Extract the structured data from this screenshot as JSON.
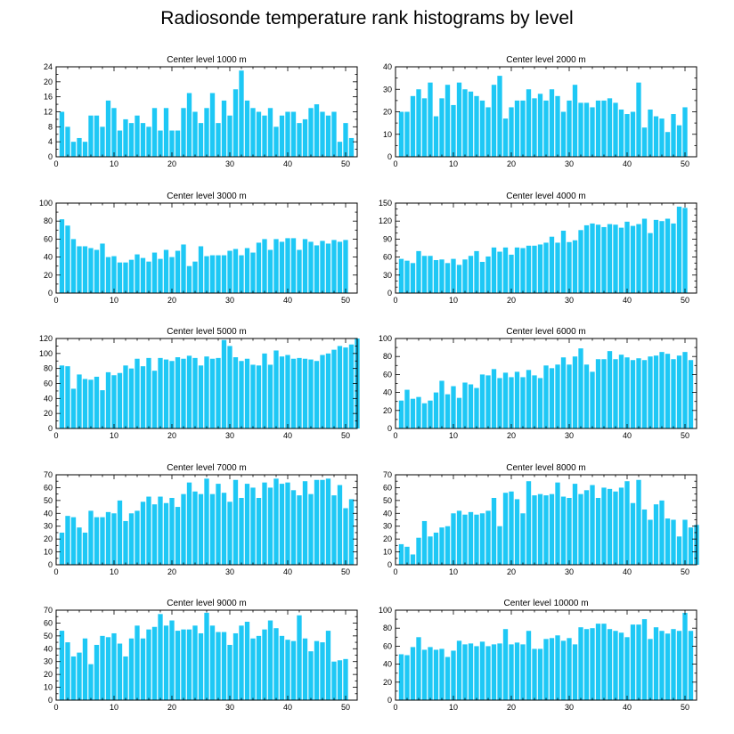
{
  "title": "Radiosonde temperature rank histograms by level",
  "colors": {
    "bar": "#1ec8f5",
    "axis": "#000000",
    "background": "#ffffff"
  },
  "chart_data": [
    {
      "type": "bar",
      "title": "Center level 1000 m",
      "xlim": [
        0,
        52
      ],
      "ylim": [
        0,
        24
      ],
      "xticks": [
        0,
        10,
        20,
        30,
        40,
        50
      ],
      "yticks": [
        0,
        4,
        8,
        12,
        16,
        20,
        24
      ],
      "x_start": 1,
      "values": [
        12,
        8,
        4,
        5,
        4,
        11,
        11,
        8,
        15,
        13,
        7,
        10,
        9,
        11,
        9,
        8,
        13,
        7,
        13,
        7,
        7,
        13,
        17,
        12,
        9,
        13,
        17,
        9,
        15,
        11,
        18,
        23,
        15,
        13,
        12,
        11,
        13,
        8,
        11,
        12,
        12,
        9,
        10,
        13,
        14,
        12,
        11,
        12,
        4,
        9,
        5
      ]
    },
    {
      "type": "bar",
      "title": "Center level 2000 m",
      "xlim": [
        0,
        52
      ],
      "ylim": [
        0,
        40
      ],
      "xticks": [
        0,
        10,
        20,
        30,
        40,
        50
      ],
      "yticks": [
        0,
        10,
        20,
        30,
        40
      ],
      "x_start": 1,
      "values": [
        20,
        20,
        27,
        30,
        26,
        33,
        18,
        26,
        32,
        23,
        33,
        30,
        29,
        27,
        25,
        22,
        32,
        36,
        17,
        22,
        25,
        25,
        30,
        26,
        28,
        25,
        30,
        27,
        20,
        25,
        32,
        24,
        24,
        22,
        25,
        25,
        26,
        24,
        21,
        19,
        20,
        33,
        13,
        21,
        18,
        17,
        11,
        19,
        14,
        22
      ]
    },
    {
      "type": "bar",
      "title": "Center level 3000 m",
      "xlim": [
        0,
        52
      ],
      "ylim": [
        0,
        100
      ],
      "xticks": [
        0,
        10,
        20,
        30,
        40,
        50
      ],
      "yticks": [
        0,
        20,
        40,
        60,
        80,
        100
      ],
      "x_start": 1,
      "values": [
        82,
        75,
        60,
        52,
        52,
        50,
        48,
        55,
        40,
        41,
        34,
        34,
        37,
        43,
        39,
        35,
        45,
        38,
        48,
        40,
        47,
        54,
        30,
        35,
        52,
        41,
        42,
        42,
        42,
        47,
        49,
        42,
        50,
        45,
        56,
        60,
        48,
        60,
        57,
        61,
        61,
        48,
        60,
        57,
        53,
        58,
        55,
        59,
        57,
        59
      ]
    },
    {
      "type": "bar",
      "title": "Center level 4000 m",
      "xlim": [
        0,
        52
      ],
      "ylim": [
        0,
        150
      ],
      "xticks": [
        0,
        10,
        20,
        30,
        40,
        50
      ],
      "yticks": [
        0,
        30,
        60,
        90,
        120,
        150
      ],
      "x_start": 1,
      "values": [
        57,
        54,
        50,
        70,
        62,
        62,
        55,
        56,
        50,
        57,
        47,
        56,
        62,
        70,
        52,
        61,
        76,
        69,
        76,
        64,
        76,
        75,
        79,
        79,
        81,
        84,
        94,
        84,
        104,
        85,
        88,
        105,
        113,
        116,
        114,
        110,
        115,
        114,
        109,
        119,
        112,
        115,
        124,
        100,
        122,
        120,
        124,
        116,
        144,
        142
      ]
    },
    {
      "type": "bar",
      "title": "Center level 5000 m",
      "xlim": [
        0,
        52
      ],
      "ylim": [
        0,
        120
      ],
      "xticks": [
        0,
        10,
        20,
        30,
        40,
        50
      ],
      "yticks": [
        0,
        20,
        40,
        60,
        80,
        100,
        120
      ],
      "x_start": 1,
      "values": [
        84,
        83,
        53,
        72,
        66,
        65,
        69,
        51,
        75,
        71,
        74,
        84,
        80,
        93,
        83,
        94,
        77,
        94,
        92,
        90,
        95,
        93,
        97,
        94,
        84,
        96,
        93,
        94,
        118,
        110,
        95,
        90,
        93,
        85,
        84,
        100,
        85,
        104,
        96,
        98,
        93,
        94,
        93,
        92,
        90,
        98,
        100,
        105,
        110,
        108,
        112,
        120
      ]
    },
    {
      "type": "bar",
      "title": "Center level 6000 m",
      "xlim": [
        0,
        52
      ],
      "ylim": [
        0,
        100
      ],
      "xticks": [
        0,
        10,
        20,
        30,
        40,
        50
      ],
      "yticks": [
        0,
        20,
        40,
        60,
        80,
        100
      ],
      "x_start": 1,
      "values": [
        31,
        43,
        33,
        35,
        28,
        31,
        40,
        53,
        38,
        47,
        34,
        51,
        49,
        45,
        60,
        59,
        66,
        56,
        62,
        57,
        63,
        57,
        65,
        59,
        56,
        70,
        67,
        71,
        79,
        71,
        80,
        89,
        71,
        63,
        77,
        77,
        86,
        77,
        82,
        79,
        76,
        78,
        76,
        80,
        81,
        85,
        83,
        77,
        81,
        85,
        76
      ]
    },
    {
      "type": "bar",
      "title": "Center level 7000 m",
      "xlim": [
        0,
        52
      ],
      "ylim": [
        0,
        70
      ],
      "xticks": [
        0,
        10,
        20,
        30,
        40,
        50
      ],
      "yticks": [
        0,
        10,
        20,
        30,
        40,
        50,
        60,
        70
      ],
      "x_start": 1,
      "values": [
        25,
        38,
        37,
        29,
        25,
        42,
        37,
        37,
        41,
        40,
        50,
        34,
        40,
        42,
        49,
        53,
        47,
        53,
        48,
        52,
        45,
        55,
        64,
        57,
        55,
        67,
        55,
        63,
        56,
        49,
        66,
        52,
        63,
        60,
        52,
        64,
        60,
        67,
        63,
        64,
        58,
        54,
        65,
        55,
        66,
        66,
        67,
        54,
        62,
        44,
        51
      ]
    },
    {
      "type": "bar",
      "title": "Center level 8000 m",
      "xlim": [
        0,
        52
      ],
      "ylim": [
        0,
        70
      ],
      "xticks": [
        0,
        10,
        20,
        30,
        40,
        50
      ],
      "yticks": [
        0,
        10,
        20,
        30,
        40,
        50,
        60,
        70
      ],
      "x_start": 1,
      "values": [
        16,
        14,
        8,
        21,
        34,
        22,
        25,
        29,
        30,
        40,
        42,
        39,
        41,
        39,
        40,
        42,
        52,
        30,
        56,
        57,
        51,
        40,
        65,
        54,
        55,
        54,
        55,
        64,
        53,
        52,
        63,
        55,
        58,
        62,
        52,
        60,
        59,
        57,
        60,
        65,
        48,
        66,
        43,
        35,
        47,
        50,
        36,
        35,
        22,
        35,
        29,
        31
      ]
    },
    {
      "type": "bar",
      "title": "Center level 9000 m",
      "xlim": [
        0,
        52
      ],
      "ylim": [
        0,
        70
      ],
      "xticks": [
        0,
        10,
        20,
        30,
        40,
        50
      ],
      "yticks": [
        0,
        10,
        20,
        30,
        40,
        50,
        60,
        70
      ],
      "x_start": 1,
      "values": [
        54,
        45,
        34,
        37,
        48,
        28,
        43,
        50,
        49,
        52,
        44,
        34,
        48,
        58,
        48,
        55,
        57,
        67,
        58,
        62,
        54,
        55,
        55,
        58,
        52,
        68,
        58,
        53,
        53,
        43,
        52,
        58,
        61,
        48,
        50,
        55,
        62,
        56,
        50,
        47,
        46,
        66,
        48,
        38,
        46,
        45,
        54,
        30,
        31,
        32
      ]
    },
    {
      "type": "bar",
      "title": "Center level 10000 m",
      "xlim": [
        0,
        52
      ],
      "ylim": [
        0,
        100
      ],
      "xticks": [
        0,
        10,
        20,
        30,
        40,
        50
      ],
      "yticks": [
        0,
        20,
        40,
        60,
        80,
        100
      ],
      "x_start": 1,
      "values": [
        51,
        50,
        59,
        70,
        56,
        59,
        56,
        57,
        48,
        55,
        66,
        62,
        63,
        60,
        65,
        60,
        62,
        63,
        79,
        62,
        64,
        62,
        77,
        57,
        57,
        68,
        69,
        72,
        66,
        69,
        62,
        81,
        79,
        80,
        85,
        85,
        79,
        77,
        75,
        70,
        84,
        84,
        90,
        68,
        81,
        77,
        74,
        79,
        77,
        97,
        77
      ]
    }
  ]
}
